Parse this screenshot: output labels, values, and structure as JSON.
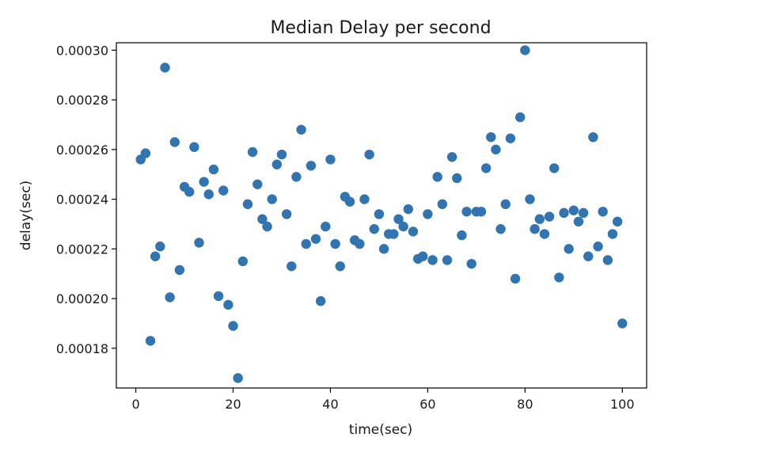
{
  "chart_data": {
    "type": "scatter",
    "title": "Median Delay per second",
    "xlabel": "time(sec)",
    "ylabel": "delay(sec)",
    "xlim": [
      -4,
      105
    ],
    "ylim": [
      0.000164,
      0.000303
    ],
    "xticks": [
      0,
      20,
      40,
      60,
      80,
      100
    ],
    "xtick_labels": [
      "0",
      "20",
      "40",
      "60",
      "80",
      "100"
    ],
    "yticks": [
      0.00018,
      0.0002,
      0.00022,
      0.00024,
      0.00026,
      0.00028,
      0.0003
    ],
    "ytick_labels": [
      "0.00018",
      "0.00020",
      "0.00022",
      "0.00024",
      "0.00026",
      "0.00028",
      "0.00030"
    ],
    "grid": false,
    "marker_color": "#3274b0",
    "x": [
      1,
      2,
      3,
      4,
      5,
      6,
      7,
      8,
      9,
      10,
      11,
      12,
      13,
      14,
      15,
      16,
      17,
      18,
      19,
      20,
      21,
      22,
      23,
      24,
      25,
      26,
      27,
      28,
      29,
      30,
      31,
      32,
      33,
      34,
      35,
      36,
      37,
      38,
      39,
      40,
      41,
      42,
      43,
      44,
      45,
      46,
      47,
      48,
      49,
      50,
      51,
      52,
      53,
      54,
      55,
      56,
      57,
      58,
      59,
      60,
      61,
      62,
      63,
      64,
      65,
      66,
      67,
      68,
      69,
      70,
      71,
      72,
      73,
      74,
      75,
      76,
      77,
      78,
      79,
      80,
      81,
      82,
      83,
      84,
      85,
      86,
      87,
      88,
      89,
      90,
      91,
      92,
      93,
      94,
      95,
      96,
      97,
      98,
      99,
      100
    ],
    "y": [
      0.000256,
      0.0002585,
      0.000183,
      0.000217,
      0.000221,
      0.000293,
      0.0002005,
      0.000263,
      0.0002115,
      0.000245,
      0.000243,
      0.000261,
      0.0002225,
      0.000247,
      0.000242,
      0.000252,
      0.000201,
      0.0002435,
      0.0001975,
      0.000189,
      0.000168,
      0.000215,
      0.000238,
      0.000259,
      0.000246,
      0.000232,
      0.000229,
      0.00024,
      0.000254,
      0.000258,
      0.000234,
      0.000213,
      0.000249,
      0.000268,
      0.000222,
      0.0002535,
      0.000224,
      0.000199,
      0.000229,
      0.000256,
      0.000222,
      0.000213,
      0.000241,
      0.000239,
      0.0002235,
      0.000222,
      0.00024,
      0.000258,
      0.000228,
      0.000234,
      0.00022,
      0.000226,
      0.000226,
      0.000232,
      0.000229,
      0.000236,
      0.000227,
      0.000216,
      0.000217,
      0.000234,
      0.0002155,
      0.000249,
      0.000238,
      0.0002155,
      0.000257,
      0.0002485,
      0.0002255,
      0.000235,
      0.000214,
      0.000235,
      0.000235,
      0.0002525,
      0.000265,
      0.00026,
      0.000228,
      0.000238,
      0.0002645,
      0.000208,
      0.000273,
      0.0003,
      0.00024,
      0.000228,
      0.000232,
      0.000226,
      0.000233,
      0.0002525,
      0.0002085,
      0.0002345,
      0.00022,
      0.0002355,
      0.000231,
      0.0002345,
      0.000217,
      0.000265,
      0.000221,
      0.000235,
      0.0002155,
      0.000226,
      0.000231,
      0.00019
    ]
  }
}
